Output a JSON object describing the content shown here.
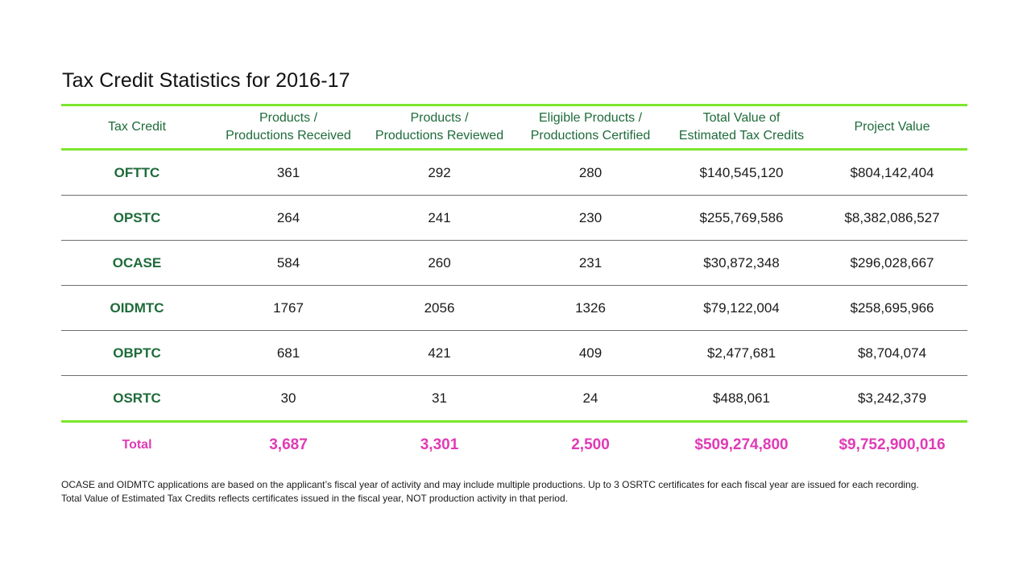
{
  "title": "Tax Credit Statistics for 2016-17",
  "colors": {
    "accent_line": "#7ce62e",
    "header_text": "#1e6b3a",
    "total_text": "#e03ab6",
    "row_divider": "#6e6e6e"
  },
  "table": {
    "headers": [
      {
        "line1": "Tax Credit",
        "line2": ""
      },
      {
        "line1": "Products /",
        "line2": "Productions Received"
      },
      {
        "line1": "Products /",
        "line2": "Productions Reviewed"
      },
      {
        "line1": "Eligible Products /",
        "line2": "Productions Certified"
      },
      {
        "line1": "Total Value of",
        "line2": "Estimated Tax Credits"
      },
      {
        "line1": "Project Value",
        "line2": ""
      }
    ],
    "rows": [
      [
        "OFTTC",
        "361",
        "292",
        "280",
        "$140,545,120",
        "$804,142,404"
      ],
      [
        "OPSTC",
        "264",
        "241",
        "230",
        "$255,769,586",
        "$8,382,086,527"
      ],
      [
        "OCASE",
        "584",
        "260",
        "231",
        "$30,872,348",
        "$296,028,667"
      ],
      [
        "OIDMTC",
        "1767",
        "2056",
        "1326",
        "$79,122,004",
        "$258,695,966"
      ],
      [
        "OBPTC",
        "681",
        "421",
        "409",
        "$2,477,681",
        "$8,704,074"
      ],
      [
        "OSRTC",
        "30",
        "31",
        "24",
        "$488,061",
        "$3,242,379"
      ]
    ],
    "total": [
      "Total",
      "3,687",
      "3,301",
      "2,500",
      "$509,274,800",
      "$9,752,900,016"
    ]
  },
  "footnote": {
    "line1": "OCASE and OIDMTC applications are based on the applicant’s fiscal year of activity and may include multiple productions. Up to 3 OSRTC certificates for each fiscal year are issued for each recording.",
    "line2": "Total Value of Estimated Tax Credits reflects certificates issued in the fiscal year, NOT production activity in that period."
  }
}
